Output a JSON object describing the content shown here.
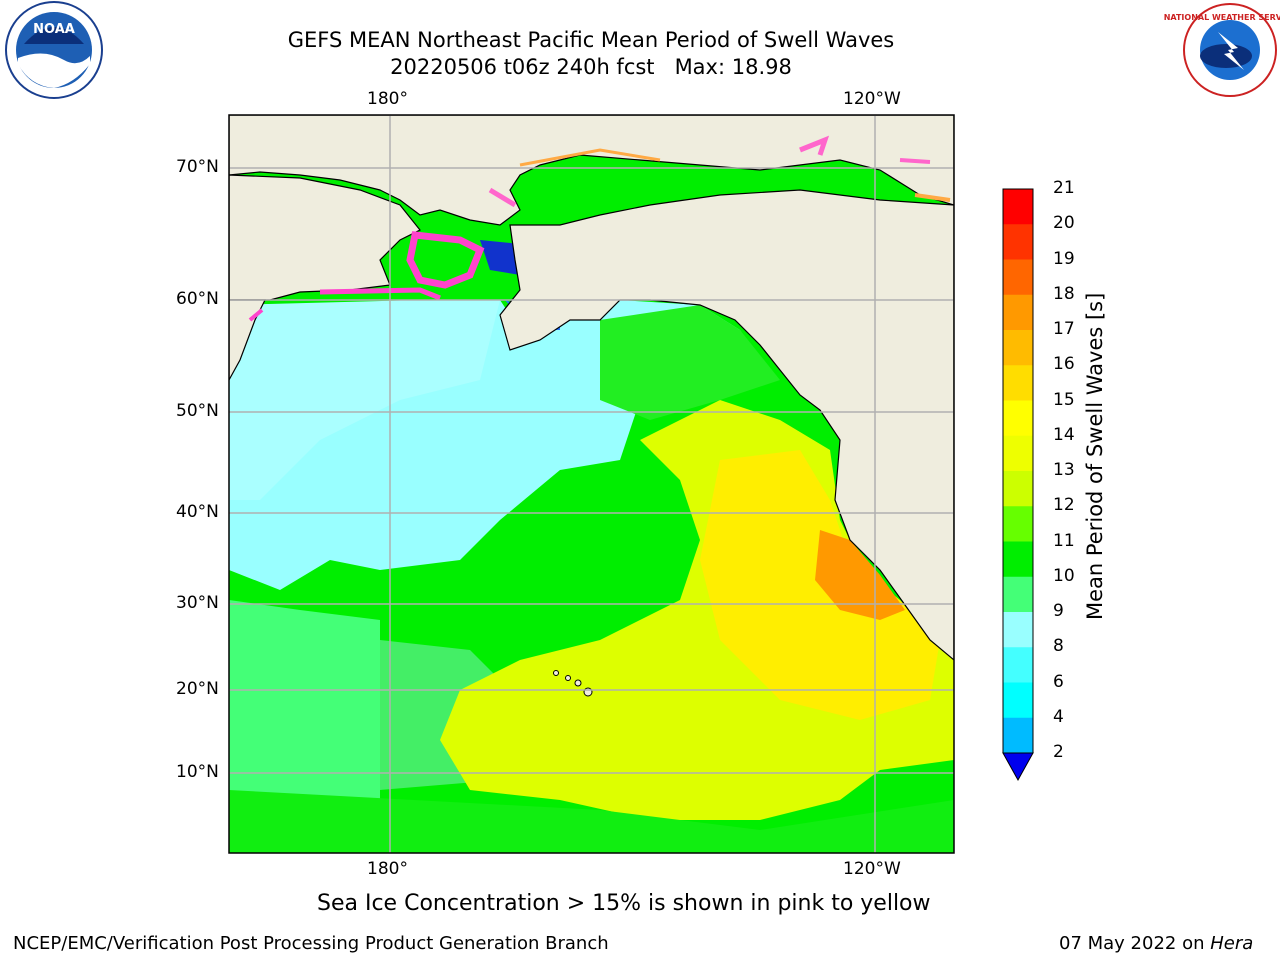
{
  "header": {
    "title_line1": "GEFS MEAN Northeast Pacific Mean Period of Swell Waves",
    "title_line2": "20220506 t06z 240h fcst   Max: 18.98"
  },
  "logos": {
    "noaa_text": "NOAA",
    "nws_text": "NATIONAL WEATHER SERVICE"
  },
  "map": {
    "lon_labels": [
      "180°",
      "120°W"
    ],
    "lat_labels": [
      "70°N",
      "60°N",
      "50°N",
      "40°N",
      "30°N",
      "20°N",
      "10°N"
    ],
    "land_color": "#efedde",
    "grid_color": "#b0b0b0"
  },
  "colorbar": {
    "title": "Mean Period of Swell Waves [s]",
    "ticks": [
      "21",
      "20",
      "19",
      "18",
      "17",
      "16",
      "15",
      "14",
      "13",
      "12",
      "11",
      "10",
      "9",
      "8",
      "6",
      "4",
      "2"
    ],
    "colors": [
      "#ff0000",
      "#ff3300",
      "#ff6600",
      "#ff9900",
      "#ffbb00",
      "#ffdd00",
      "#ffff00",
      "#eeff00",
      "#ccff00",
      "#66ff00",
      "#00ee00",
      "#44ff77",
      "#99ffff",
      "#44ffff",
      "#00ffff",
      "#00bbff",
      "#0066ff"
    ],
    "under_color": "#0000ee"
  },
  "caption": "Sea Ice Concentration > 15% is shown in pink to yellow",
  "footer": {
    "left": "NCEP/EMC/Verification Post Processing Product Generation Branch",
    "date": "07 May 2022 on ",
    "machine": "Hera"
  }
}
